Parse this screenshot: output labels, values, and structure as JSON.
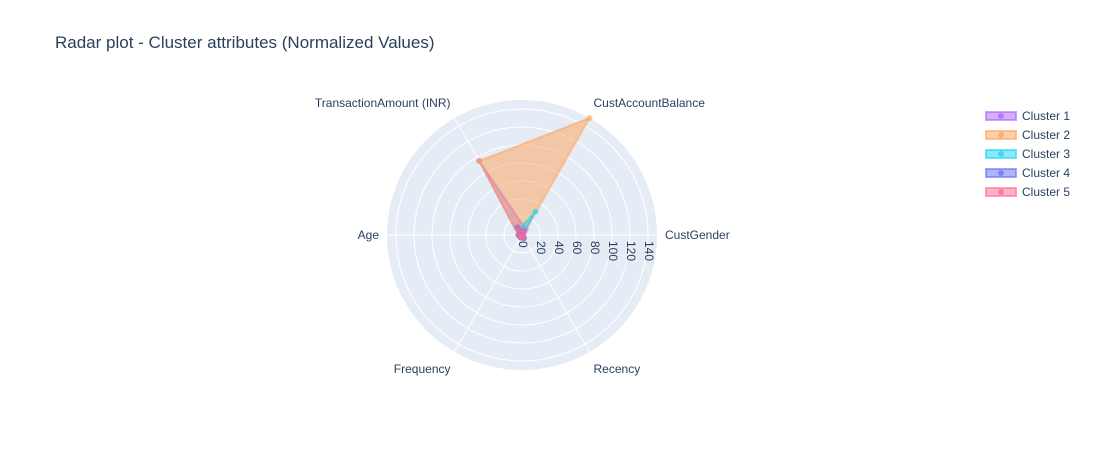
{
  "chart_data": {
    "type": "radar",
    "title": "Radar plot - Cluster attributes (Normalized Values)",
    "axes": [
      "CustGender",
      "CustAccountBalance",
      "TransactionAmount (INR)",
      "Age",
      "Frequency",
      "Recency"
    ],
    "radial_ticks": [
      "0",
      "20",
      "40",
      "60",
      "80",
      "100",
      "120",
      "140"
    ],
    "radial_range": [
      0,
      150
    ],
    "legend_position": "top-right",
    "series": [
      {
        "name": "Cluster 1",
        "color": "#ab63fa",
        "values": [
          1,
          8,
          95,
          4,
          3,
          4
        ]
      },
      {
        "name": "Cluster 2",
        "color": "#FFA15A",
        "values": [
          1,
          150,
          95,
          4,
          3,
          4
        ]
      },
      {
        "name": "Cluster 3",
        "color": "#19d3f3",
        "values": [
          1,
          30,
          7,
          4,
          3,
          4
        ]
      },
      {
        "name": "Cluster 4",
        "color": "#636efa",
        "values": [
          1,
          5,
          10,
          3,
          3,
          4
        ]
      },
      {
        "name": "Cluster 5",
        "color": "#FF6692",
        "values": [
          1,
          5,
          8,
          4,
          3,
          4
        ]
      }
    ]
  }
}
